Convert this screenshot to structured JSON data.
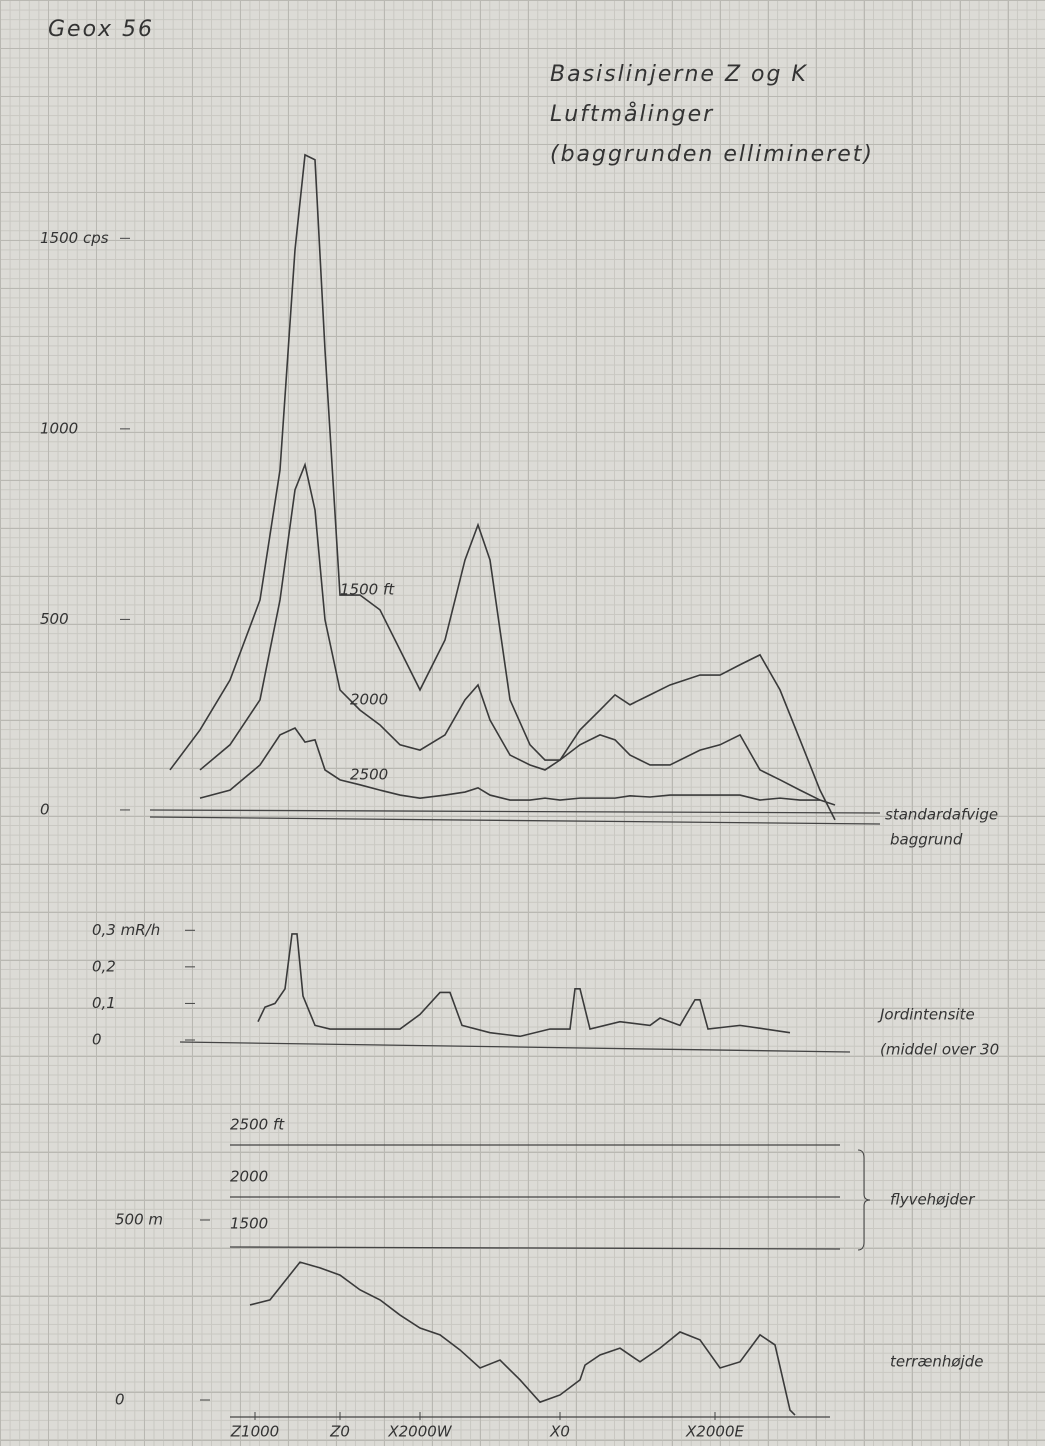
{
  "header": "Geox 56",
  "chart_data": [
    {
      "type": "line",
      "title": [
        "Basislinjerne Z og K",
        "Luftmålinger",
        "(baggrunden ellimineret)"
      ],
      "xlim": [
        0,
        70
      ],
      "ylim": [
        -50,
        1800
      ],
      "yticks": [
        0,
        500,
        1000,
        {
          "value": 1500,
          "label": "1500 cps"
        }
      ],
      "x": [
        2,
        5,
        8,
        11,
        13,
        14.5,
        15.5,
        16.5,
        17.5,
        19,
        21,
        23,
        25,
        27,
        29.5,
        31.5,
        32.8,
        34,
        36,
        38,
        39.5,
        41,
        43,
        45,
        46.5,
        48,
        50,
        52,
        55,
        57,
        59,
        61,
        63,
        65,
        67,
        68.5
      ],
      "series": [
        {
          "name": "1500 ft",
          "color": "#3a3a3a",
          "values": [
            105,
            210,
            341,
            551,
            892,
            1470,
            1719,
            1706,
            1207,
            564,
            564,
            525,
            420,
            315,
            446,
            656,
            748,
            656,
            289,
            171,
            131,
            131,
            210,
            262,
            302,
            276,
            302,
            328,
            354,
            354,
            381,
            407,
            315,
            184,
            52,
            -26
          ]
        },
        {
          "name": "2000",
          "color": "#3a3a3a",
          "values": [
            null,
            105,
            171,
            289,
            551,
            840,
            906,
            787,
            499,
            315,
            262,
            223,
            171,
            157,
            197,
            289,
            328,
            236,
            144,
            118,
            105,
            131,
            171,
            197,
            184,
            144,
            118,
            118,
            157,
            171,
            197,
            105,
            79,
            52,
            26,
            13
          ]
        },
        {
          "name": "2500",
          "color": "#3a3a3a",
          "values": [
            null,
            31,
            52,
            118,
            197,
            215,
            178,
            184,
            105,
            79,
            66,
            52,
            39,
            31,
            39,
            47,
            58,
            39,
            26,
            26,
            31,
            26,
            31,
            31,
            31,
            37,
            34,
            39,
            39,
            39,
            39,
            26,
            31,
            26,
            26,
            null
          ]
        }
      ],
      "annotations": [
        "standardafvige",
        "baggrund"
      ]
    },
    {
      "type": "line",
      "xlim": [
        0,
        70
      ],
      "ylim": [
        0,
        0.35
      ],
      "yticks": [
        {
          "value": 0,
          "label": "0"
        },
        {
          "value": 0.1,
          "label": "0,1"
        },
        {
          "value": 0.2,
          "label": "0,2"
        },
        {
          "value": 0.3,
          "label": "0,3 mR/h"
        }
      ],
      "x": [
        10.8,
        11.5,
        12.5,
        13.5,
        14.2,
        14.7,
        15.3,
        16.5,
        18,
        21,
        25,
        27,
        29,
        30,
        31.2,
        34,
        37,
        40,
        42,
        42.5,
        43,
        44,
        47,
        50,
        51,
        53,
        54.5,
        55,
        55.8,
        59,
        64
      ],
      "series": [
        {
          "name": "Jordintensite",
          "color": "#3a3a3a",
          "values": [
            0.05,
            0.09,
            0.1,
            0.14,
            0.29,
            0.29,
            0.12,
            0.04,
            0.03,
            0.03,
            0.03,
            0.07,
            0.13,
            0.13,
            0.04,
            0.02,
            0.01,
            0.03,
            0.03,
            0.14,
            0.14,
            0.03,
            0.05,
            0.04,
            0.06,
            0.04,
            0.11,
            0.11,
            0.03,
            0.04,
            0.02
          ]
        }
      ],
      "annotations": [
        "(middel over 30"
      ]
    },
    {
      "type": "line",
      "xlim": [
        0,
        70
      ],
      "ylim": [
        -50,
        600
      ],
      "yticks": [
        0,
        {
          "value": 500,
          "label": "500 m"
        }
      ],
      "xticks": [
        {
          "value": 10.5,
          "label": "Z1000"
        },
        {
          "value": 19,
          "label": "Z0"
        },
        {
          "value": 27,
          "label": "X2000W"
        },
        {
          "value": 41,
          "label": "X0"
        },
        {
          "value": 56.5,
          "label": "X2000E"
        }
      ],
      "x": [
        10,
        12,
        15,
        17,
        19,
        21,
        23,
        25,
        27,
        29,
        31,
        33,
        35,
        37,
        39,
        41,
        43,
        43.5,
        45,
        47,
        49,
        51,
        53,
        55,
        57,
        59,
        61,
        62.5,
        64,
        64.5
      ],
      "series": [
        {
          "name": "terrænhøjde",
          "color": "#3a3a3a",
          "values": [
            264,
            278,
            383,
            367,
            347,
            306,
            278,
            236,
            200,
            181,
            139,
            89,
            111,
            56,
            -6,
            14,
            56,
            97,
            125,
            144,
            106,
            144,
            189,
            167,
            89,
            106,
            181,
            153,
            -28,
            -42
          ]
        }
      ],
      "levels": [
        "2500 ft",
        "2000",
        "1500"
      ],
      "annotations": [
        "flyvehøjder"
      ]
    }
  ]
}
